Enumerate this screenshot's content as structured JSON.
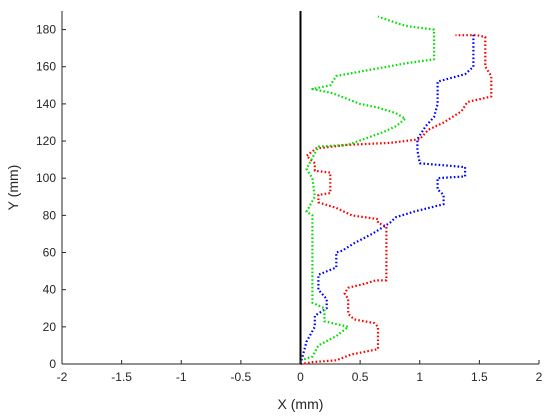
{
  "chart_data": {
    "type": "line",
    "title": "",
    "xlabel": "X (mm)",
    "ylabel": "Y (mm)",
    "xlim": [
      -2,
      2
    ],
    "ylim": [
      0,
      190
    ],
    "xticks": [
      -2,
      -1.5,
      -1,
      -0.5,
      0,
      0.5,
      1,
      1.5,
      2
    ],
    "yticks": [
      0,
      20,
      40,
      60,
      80,
      100,
      120,
      140,
      160,
      180
    ],
    "xtick_labels": [
      "-2",
      "-1.5",
      "-1",
      "-0.5",
      "0",
      "0.5",
      "1",
      "1.5",
      "2"
    ],
    "ytick_labels": [
      "0",
      "20",
      "40",
      "60",
      "80",
      "100",
      "120",
      "140",
      "160",
      "180"
    ],
    "grid": false,
    "legend": "none",
    "reference_line": {
      "x": 0,
      "y_from": 0,
      "y_to": 190,
      "color": "#000000"
    },
    "series": [
      {
        "color": "#ff0000",
        "style": "dotted",
        "points": [
          [
            0,
            0
          ],
          [
            0.1,
            1
          ],
          [
            0.3,
            2
          ],
          [
            0.42,
            5
          ],
          [
            0.65,
            8
          ],
          [
            0.65,
            20
          ],
          [
            0.62,
            22
          ],
          [
            0.45,
            24
          ],
          [
            0.4,
            27
          ],
          [
            0.4,
            35
          ],
          [
            0.37,
            38
          ],
          [
            0.4,
            41
          ],
          [
            0.53,
            43
          ],
          [
            0.63,
            45
          ],
          [
            0.72,
            45
          ],
          [
            0.72,
            47
          ],
          [
            0.72,
            70
          ],
          [
            0.72,
            74
          ],
          [
            0.65,
            76
          ],
          [
            0.65,
            78
          ],
          [
            0.43,
            80
          ],
          [
            0.3,
            84
          ],
          [
            0.15,
            87
          ],
          [
            0.15,
            91
          ],
          [
            0.25,
            92
          ],
          [
            0.25,
            103
          ],
          [
            0.12,
            104
          ],
          [
            0.12,
            108
          ],
          [
            0.05,
            112
          ],
          [
            0.13,
            116
          ],
          [
            0.4,
            118
          ],
          [
            0.75,
            119
          ],
          [
            1.0,
            121
          ],
          [
            1.07,
            126
          ],
          [
            1.2,
            130
          ],
          [
            1.35,
            136
          ],
          [
            1.4,
            141
          ],
          [
            1.6,
            144
          ],
          [
            1.6,
            155
          ],
          [
            1.55,
            160
          ],
          [
            1.55,
            176
          ],
          [
            1.48,
            177
          ],
          [
            1.3,
            177
          ]
        ]
      },
      {
        "color": "#0000ff",
        "style": "dotted",
        "points": [
          [
            0,
            0
          ],
          [
            0.05,
            12
          ],
          [
            0.12,
            20
          ],
          [
            0.12,
            26
          ],
          [
            0.22,
            30
          ],
          [
            0.22,
            35
          ],
          [
            0.15,
            40
          ],
          [
            0.15,
            48
          ],
          [
            0.3,
            52
          ],
          [
            0.3,
            60
          ],
          [
            0.35,
            61
          ],
          [
            0.45,
            65
          ],
          [
            0.6,
            70
          ],
          [
            0.7,
            74
          ],
          [
            0.75,
            76
          ],
          [
            0.8,
            79
          ],
          [
            0.95,
            82
          ],
          [
            1.2,
            86
          ],
          [
            1.2,
            91
          ],
          [
            1.15,
            94
          ],
          [
            1.15,
            100
          ],
          [
            1.38,
            101
          ],
          [
            1.38,
            106
          ],
          [
            1.0,
            108
          ],
          [
            0.98,
            115
          ],
          [
            0.98,
            121
          ],
          [
            1.05,
            128
          ],
          [
            1.12,
            133
          ],
          [
            1.15,
            140
          ],
          [
            1.15,
            150
          ],
          [
            1.15,
            152
          ],
          [
            1.38,
            156
          ],
          [
            1.45,
            160
          ],
          [
            1.45,
            178
          ]
        ]
      },
      {
        "color": "#00dd00",
        "style": "dotted",
        "points": [
          [
            0,
            2
          ],
          [
            0.1,
            4
          ],
          [
            0.15,
            10
          ],
          [
            0.3,
            15
          ],
          [
            0.4,
            20
          ],
          [
            0.2,
            23
          ],
          [
            0.2,
            30
          ],
          [
            0.1,
            33
          ],
          [
            0.1,
            60
          ],
          [
            0.1,
            80
          ],
          [
            0.05,
            82
          ],
          [
            0.12,
            90
          ],
          [
            0.1,
            100
          ],
          [
            0.05,
            105
          ],
          [
            0.15,
            117
          ],
          [
            0.4,
            118
          ],
          [
            0.7,
            125
          ],
          [
            0.8,
            128
          ],
          [
            0.88,
            132
          ],
          [
            0.8,
            135
          ],
          [
            0.65,
            138
          ],
          [
            0.5,
            140
          ],
          [
            0.3,
            145
          ],
          [
            0.25,
            146
          ],
          [
            0.1,
            148
          ],
          [
            0.25,
            150
          ],
          [
            0.3,
            155
          ],
          [
            0.55,
            158
          ],
          [
            0.9,
            162
          ],
          [
            1.12,
            164
          ],
          [
            1.12,
            180
          ],
          [
            0.88,
            182
          ],
          [
            0.65,
            187
          ]
        ]
      }
    ]
  }
}
